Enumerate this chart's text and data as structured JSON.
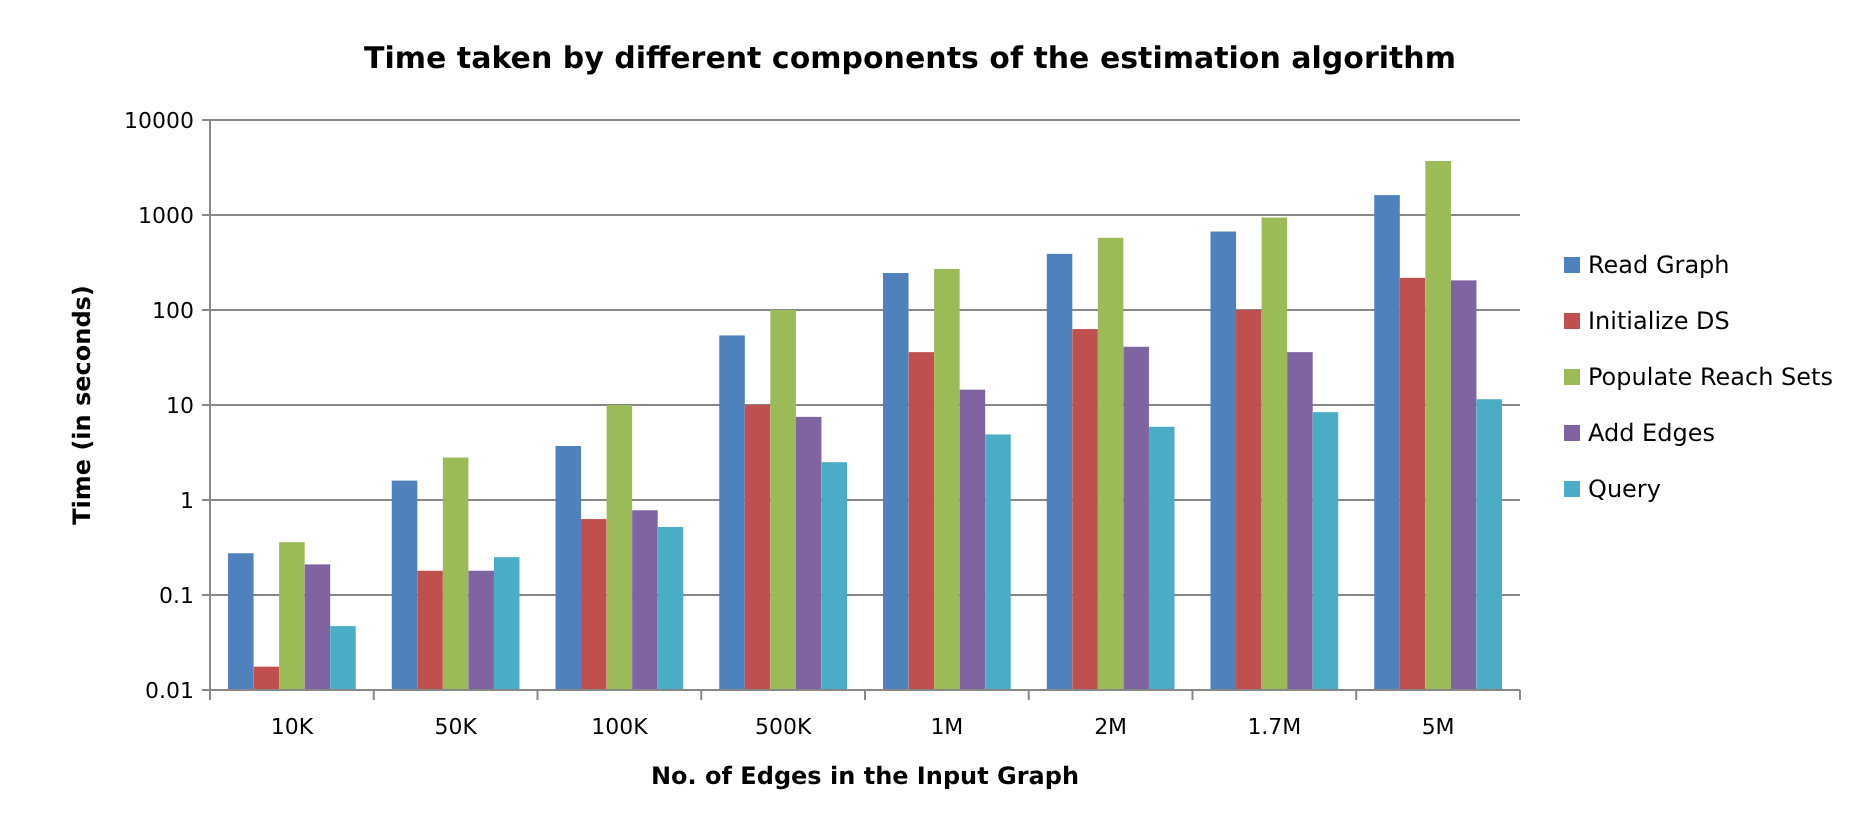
{
  "chart_data": {
    "type": "bar",
    "title": "Time taken by different components of the estimation algorithm",
    "xlabel": "No. of Edges  in the Input Graph",
    "ylabel": "Time  (in seconds)",
    "categories": [
      "10K",
      "50K",
      "100K",
      "500K",
      "1M",
      "2M",
      "1.7M",
      "5M"
    ],
    "series": [
      {
        "name": "Read Graph",
        "color": "#4f81bd",
        "values": [
          0.275,
          1.6,
          3.7,
          54,
          245,
          390,
          670,
          1620
        ]
      },
      {
        "name": "Initialize DS",
        "color": "#c0504d",
        "values": [
          0.0176,
          0.18,
          0.63,
          10,
          36,
          63,
          100,
          218
        ]
      },
      {
        "name": "Populate Reach Sets",
        "color": "#9bbb59",
        "values": [
          0.36,
          2.8,
          10,
          100,
          270,
          575,
          940,
          3700
        ]
      },
      {
        "name": "Add Edges",
        "color": "#8064a2",
        "values": [
          0.21,
          0.18,
          0.78,
          7.5,
          14.5,
          41,
          36,
          205
        ]
      },
      {
        "name": "Query",
        "color": "#4bacc6",
        "values": [
          0.047,
          0.25,
          0.52,
          2.5,
          4.9,
          5.9,
          8.4,
          11.5
        ]
      }
    ],
    "log": true,
    "ylim": [
      0.01,
      10000
    ],
    "yticks": [
      0.01,
      0.1,
      1,
      10,
      100,
      1000,
      10000
    ],
    "grid": "y",
    "legend": "right"
  }
}
